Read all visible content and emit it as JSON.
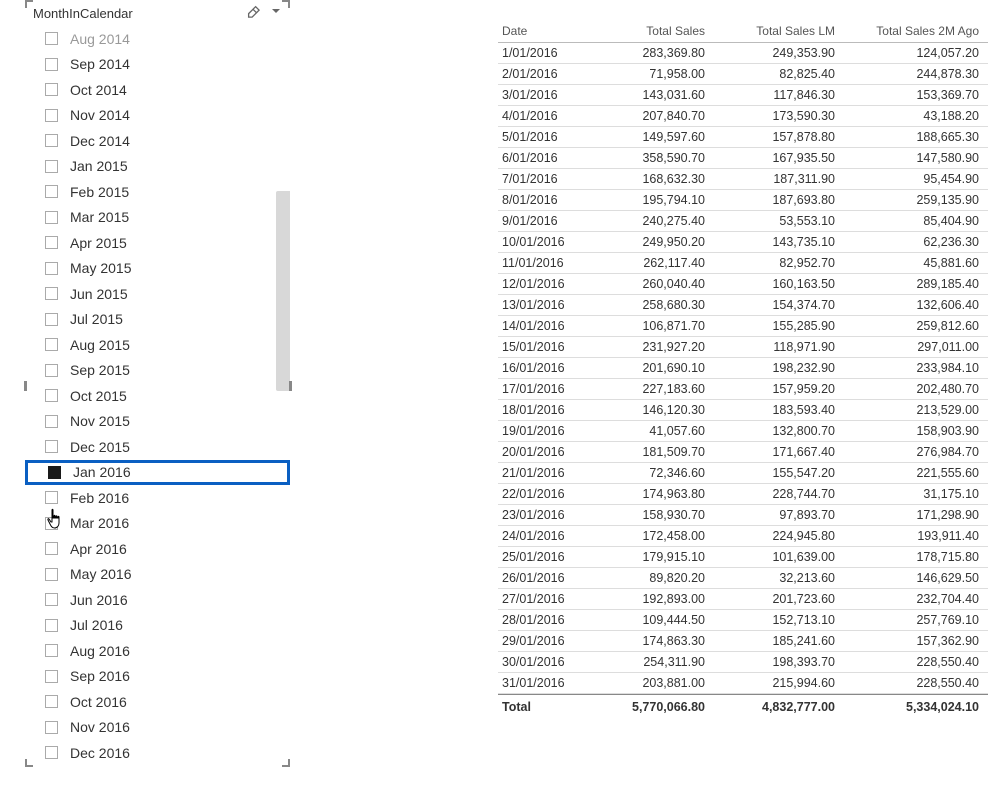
{
  "slicer": {
    "title": "MonthInCalendar",
    "items": [
      {
        "label": "Aug 2014",
        "checked": false,
        "truncated": true
      },
      {
        "label": "Sep 2014",
        "checked": false
      },
      {
        "label": "Oct 2014",
        "checked": false
      },
      {
        "label": "Nov 2014",
        "checked": false
      },
      {
        "label": "Dec 2014",
        "checked": false
      },
      {
        "label": "Jan 2015",
        "checked": false
      },
      {
        "label": "Feb 2015",
        "checked": false
      },
      {
        "label": "Mar 2015",
        "checked": false
      },
      {
        "label": "Apr 2015",
        "checked": false
      },
      {
        "label": "May 2015",
        "checked": false
      },
      {
        "label": "Jun 2015",
        "checked": false
      },
      {
        "label": "Jul 2015",
        "checked": false
      },
      {
        "label": "Aug 2015",
        "checked": false
      },
      {
        "label": "Sep 2015",
        "checked": false
      },
      {
        "label": "Oct 2015",
        "checked": false
      },
      {
        "label": "Nov 2015",
        "checked": false
      },
      {
        "label": "Dec 2015",
        "checked": false
      },
      {
        "label": "Jan 2016",
        "checked": true,
        "highlighted": true
      },
      {
        "label": "Feb 2016",
        "checked": false
      },
      {
        "label": "Mar 2016",
        "checked": false
      },
      {
        "label": "Apr 2016",
        "checked": false
      },
      {
        "label": "May 2016",
        "checked": false
      },
      {
        "label": "Jun 2016",
        "checked": false
      },
      {
        "label": "Jul 2016",
        "checked": false
      },
      {
        "label": "Aug 2016",
        "checked": false
      },
      {
        "label": "Sep 2016",
        "checked": false
      },
      {
        "label": "Oct 2016",
        "checked": false
      },
      {
        "label": "Nov 2016",
        "checked": false
      },
      {
        "label": "Dec 2016",
        "checked": false
      }
    ]
  },
  "table": {
    "columns": [
      "Date",
      "Total Sales",
      "Total Sales LM",
      "Total Sales 2M Ago"
    ],
    "rows": [
      [
        "1/01/2016",
        "283,369.80",
        "249,353.90",
        "124,057.20"
      ],
      [
        "2/01/2016",
        "71,958.00",
        "82,825.40",
        "244,878.30"
      ],
      [
        "3/01/2016",
        "143,031.60",
        "117,846.30",
        "153,369.70"
      ],
      [
        "4/01/2016",
        "207,840.70",
        "173,590.30",
        "43,188.20"
      ],
      [
        "5/01/2016",
        "149,597.60",
        "157,878.80",
        "188,665.30"
      ],
      [
        "6/01/2016",
        "358,590.70",
        "167,935.50",
        "147,580.90"
      ],
      [
        "7/01/2016",
        "168,632.30",
        "187,311.90",
        "95,454.90"
      ],
      [
        "8/01/2016",
        "195,794.10",
        "187,693.80",
        "259,135.90"
      ],
      [
        "9/01/2016",
        "240,275.40",
        "53,553.10",
        "85,404.90"
      ],
      [
        "10/01/2016",
        "249,950.20",
        "143,735.10",
        "62,236.30"
      ],
      [
        "11/01/2016",
        "262,117.40",
        "82,952.70",
        "45,881.60"
      ],
      [
        "12/01/2016",
        "260,040.40",
        "160,163.50",
        "289,185.40"
      ],
      [
        "13/01/2016",
        "258,680.30",
        "154,374.70",
        "132,606.40"
      ],
      [
        "14/01/2016",
        "106,871.70",
        "155,285.90",
        "259,812.60"
      ],
      [
        "15/01/2016",
        "231,927.20",
        "118,971.90",
        "297,011.00"
      ],
      [
        "16/01/2016",
        "201,690.10",
        "198,232.90",
        "233,984.10"
      ],
      [
        "17/01/2016",
        "227,183.60",
        "157,959.20",
        "202,480.70"
      ],
      [
        "18/01/2016",
        "146,120.30",
        "183,593.40",
        "213,529.00"
      ],
      [
        "19/01/2016",
        "41,057.60",
        "132,800.70",
        "158,903.90"
      ],
      [
        "20/01/2016",
        "181,509.70",
        "171,667.40",
        "276,984.70"
      ],
      [
        "21/01/2016",
        "72,346.60",
        "155,547.20",
        "221,555.60"
      ],
      [
        "22/01/2016",
        "174,963.80",
        "228,744.70",
        "31,175.10"
      ],
      [
        "23/01/2016",
        "158,930.70",
        "97,893.70",
        "171,298.90"
      ],
      [
        "24/01/2016",
        "172,458.00",
        "224,945.80",
        "193,911.40"
      ],
      [
        "25/01/2016",
        "179,915.10",
        "101,639.00",
        "178,715.80"
      ],
      [
        "26/01/2016",
        "89,820.20",
        "32,213.60",
        "146,629.50"
      ],
      [
        "27/01/2016",
        "192,893.00",
        "201,723.60",
        "232,704.40"
      ],
      [
        "28/01/2016",
        "109,444.50",
        "152,713.10",
        "257,769.10"
      ],
      [
        "29/01/2016",
        "174,863.30",
        "185,241.60",
        "157,362.90"
      ],
      [
        "30/01/2016",
        "254,311.90",
        "198,393.70",
        "228,550.40"
      ],
      [
        "31/01/2016",
        "203,881.00",
        "215,994.60",
        "228,550.40"
      ]
    ],
    "total": [
      "Total",
      "5,770,066.80",
      "4,832,777.00",
      "5,334,024.10"
    ]
  },
  "colors": {
    "highlight_border": "#0a5fc2",
    "checkbox_border": "#aaaaaa",
    "text": "#333333",
    "header_text": "#555555",
    "row_border": "#dddddd"
  }
}
